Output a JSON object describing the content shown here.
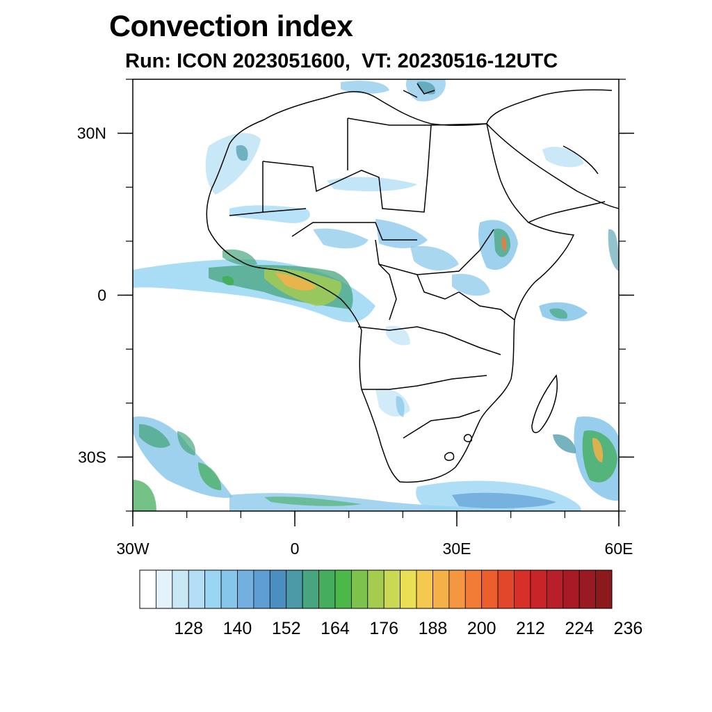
{
  "title": "Convection index",
  "subtitle": "Run: ICON 2023051600,  VT: 20230516-12UTC",
  "map": {
    "x_ticks": [
      {
        "value": -30,
        "label": "30W"
      },
      {
        "value": 0,
        "label": "0"
      },
      {
        "value": 30,
        "label": "30E"
      },
      {
        "value": 60,
        "label": "60E"
      }
    ],
    "y_ticks": [
      {
        "value": 30,
        "label": "30N"
      },
      {
        "value": 0,
        "label": "0"
      },
      {
        "value": -30,
        "label": "30S"
      }
    ],
    "lon_range": [
      -30,
      60
    ],
    "lat_range": [
      -40,
      40
    ]
  },
  "colorbar": {
    "labels": [
      "128",
      "140",
      "152",
      "164",
      "176",
      "188",
      "200",
      "212",
      "224",
      "236"
    ],
    "colors": [
      "#ffffff",
      "#e4f3fb",
      "#c9e8f6",
      "#b3def5",
      "#9ad6f3",
      "#86c6ea",
      "#73b0e0",
      "#5e9ed5",
      "#4a8fc0",
      "#4a9aa8",
      "#47a67f",
      "#45ae5e",
      "#4cb84a",
      "#7dc24c",
      "#a6cc4f",
      "#cbd853",
      "#eadf55",
      "#f5c94f",
      "#f6b048",
      "#f59640",
      "#f27c36",
      "#ec5f2d",
      "#e2472a",
      "#d73028",
      "#c92428",
      "#b91f28",
      "#a81b26",
      "#991a22",
      "#8c1a1d"
    ]
  }
}
